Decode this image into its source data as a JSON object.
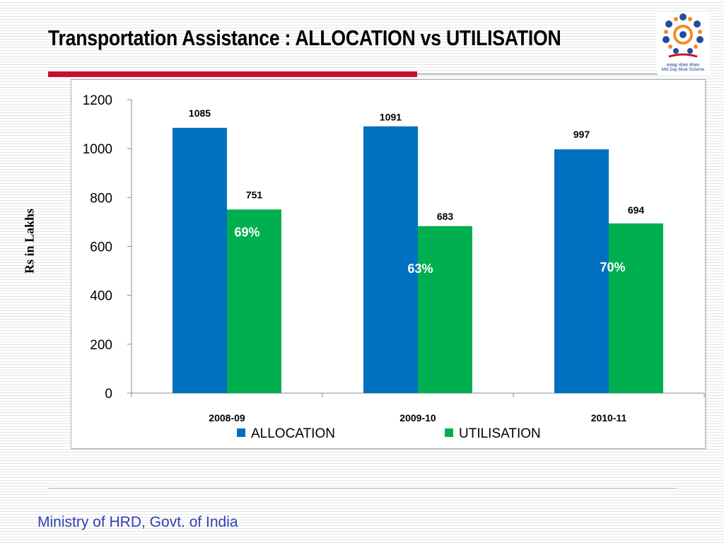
{
  "slide": {
    "title": "Transportation Assistance : ALLOCATION vs UTILISATION",
    "footer": "Ministry of HRD, Govt. of India"
  },
  "logo": {
    "caption_hindi": "मध्याह्न भोजन योजना",
    "caption_english": "Mid Day Meal Scheme"
  },
  "colors": {
    "allocation": "#0070c0",
    "utilisation": "#00b050",
    "title_rule": "#c8102e",
    "footer_text": "#2e41b6"
  },
  "chart_data": {
    "type": "bar",
    "title": "",
    "xlabel": "",
    "ylabel": "Rs in Lakhs",
    "categories": [
      "2008-09",
      "2009-10",
      "2010-11"
    ],
    "series": [
      {
        "name": "ALLOCATION",
        "values": [
          1085,
          1091,
          997
        ],
        "color": "#0070c0"
      },
      {
        "name": "UTILISATION",
        "values": [
          751,
          683,
          694
        ],
        "color": "#00b050"
      }
    ],
    "utilisation_percent_labels": [
      "69%",
      "63%",
      "70%"
    ],
    "ylim": [
      0,
      1200
    ],
    "yticks": [
      0,
      200,
      400,
      600,
      800,
      1000,
      1200
    ],
    "grid": false,
    "legend": "bottom"
  }
}
